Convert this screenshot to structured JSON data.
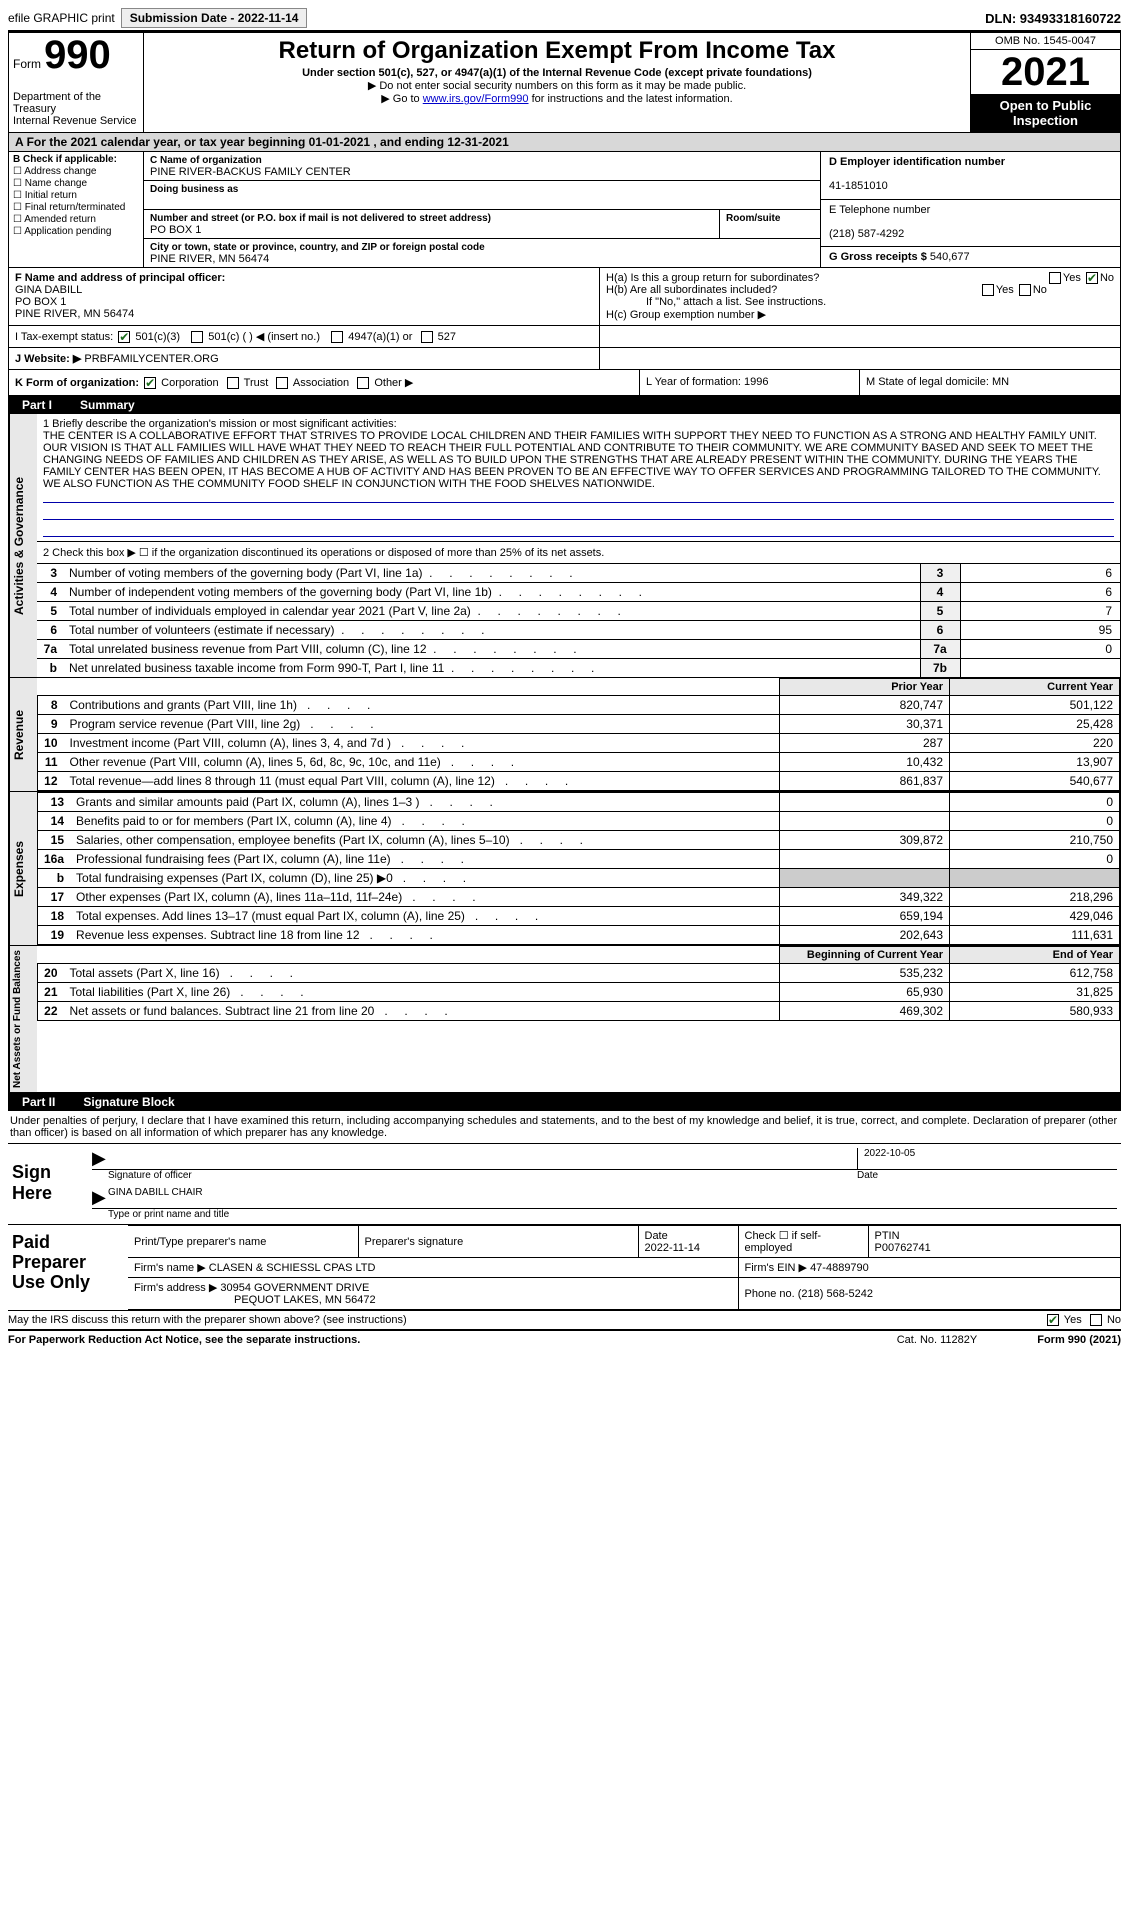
{
  "topbar": {
    "efile": "efile GRAPHIC print",
    "submission_label": "Submission Date - 2022-11-14",
    "dln_label": "DLN: 93493318160722"
  },
  "header": {
    "form_word": "Form",
    "form_num": "990",
    "dept": "Department of the Treasury",
    "irs": "Internal Revenue Service",
    "title": "Return of Organization Exempt From Income Tax",
    "subtitle": "Under section 501(c), 527, or 4947(a)(1) of the Internal Revenue Code (except private foundations)",
    "line1": "▶ Do not enter social security numbers on this form as it may be made public.",
    "line2_pre": "▶ Go to ",
    "line2_link": "www.irs.gov/Form990",
    "line2_post": " for instructions and the latest information.",
    "omb": "OMB No. 1545-0047",
    "year": "2021",
    "open_public": "Open to Public Inspection"
  },
  "period": "For the 2021 calendar year, or tax year beginning 01-01-2021     , and ending 12-31-2021",
  "boxB": {
    "title": "B Check if applicable:",
    "items": [
      "Address change",
      "Name change",
      "Initial return",
      "Final return/terminated",
      "Amended return",
      "Application pending"
    ]
  },
  "boxC": {
    "name_label": "C Name of organization",
    "name": "PINE RIVER-BACKUS FAMILY CENTER",
    "dba_label": "Doing business as",
    "dba": "",
    "street_label": "Number and street (or P.O. box if mail is not delivered to street address)",
    "street": "PO BOX 1",
    "room_label": "Room/suite",
    "city_label": "City or town, state or province, country, and ZIP or foreign postal code",
    "city": "PINE RIVER, MN  56474"
  },
  "boxD": {
    "ein_label": "D Employer identification number",
    "ein": "41-1851010",
    "tel_label": "E Telephone number",
    "tel": "(218) 587-4292",
    "gross_label": "G Gross receipts $",
    "gross": "540,677"
  },
  "boxF": {
    "label": "F  Name and address of principal officer:",
    "name": "GINA DABILL",
    "street": "PO BOX 1",
    "city": "PINE RIVER, MN  56474"
  },
  "boxH": {
    "a_label": "H(a)  Is this a group return for subordinates?",
    "b_label": "H(b)  Are all subordinates included?",
    "b_note": "If \"No,\" attach a list. See instructions.",
    "c_label": "H(c)  Group exemption number ▶",
    "yes": "Yes",
    "no": "No"
  },
  "boxI": {
    "label": "I    Tax-exempt status:",
    "opt1": "501(c)(3)",
    "opt2": "501(c) (   ) ◀ (insert no.)",
    "opt3": "4947(a)(1) or",
    "opt4": "527"
  },
  "boxJ": {
    "label": "J   Website: ▶",
    "value": "PRBFAMILYCENTER.ORG"
  },
  "boxK": {
    "label": "K Form of organization:",
    "corp": "Corporation",
    "trust": "Trust",
    "assoc": "Association",
    "other": "Other ▶"
  },
  "boxL": {
    "label": "L Year of formation: 1996"
  },
  "boxM": {
    "label": "M State of legal domicile: MN"
  },
  "part1": {
    "label": "Part I",
    "title": "Summary",
    "mission_label": "1   Briefly describe the organization's mission or most significant activities:",
    "mission": "THE CENTER IS A COLLABORATIVE EFFORT THAT STRIVES TO PROVIDE LOCAL CHILDREN AND THEIR FAMILIES WITH SUPPORT THEY NEED TO FUNCTION AS A STRONG AND HEALTHY FAMILY UNIT. OUR VISION IS THAT ALL FAMILIES WILL HAVE WHAT THEY NEED TO REACH THEIR FULL POTENTIAL AND CONTRIBUTE TO THEIR COMMUNITY. WE ARE COMMUNITY BASED AND SEEK TO MEET THE CHANGING NEEDS OF FAMILIES AND CHILDREN AS THEY ARISE, AS WELL AS TO BUILD UPON THE STRENGTHS THAT ARE ALREADY PRESENT WITHIN THE COMMUNITY. DURING THE YEARS THE FAMILY CENTER HAS BEEN OPEN, IT HAS BECOME A HUB OF ACTIVITY AND HAS BEEN PROVEN TO BE AN EFFECTIVE WAY TO OFFER SERVICES AND PROGRAMMING TAILORED TO THE COMMUNITY. WE ALSO FUNCTION AS THE COMMUNITY FOOD SHELF IN CONJUNCTION WITH THE FOOD SHELVES NATIONWIDE.",
    "line2": "2   Check this box ▶ ☐  if the organization discontinued its operations or disposed of more than 25% of its net assets.",
    "gov_rows": [
      {
        "n": "3",
        "d": "Number of voting members of the governing body (Part VI, line 1a)",
        "b": "3",
        "v": "6"
      },
      {
        "n": "4",
        "d": "Number of independent voting members of the governing body (Part VI, line 1b)",
        "b": "4",
        "v": "6"
      },
      {
        "n": "5",
        "d": "Total number of individuals employed in calendar year 2021 (Part V, line 2a)",
        "b": "5",
        "v": "7"
      },
      {
        "n": "6",
        "d": "Total number of volunteers (estimate if necessary)",
        "b": "6",
        "v": "95"
      },
      {
        "n": "7a",
        "d": "Total unrelated business revenue from Part VIII, column (C), line 12",
        "b": "7a",
        "v": "0"
      },
      {
        "n": "b",
        "d": "Net unrelated business taxable income from Form 990-T, Part I, line 11",
        "b": "7b",
        "v": ""
      }
    ],
    "py_label": "Prior Year",
    "cy_label": "Current Year",
    "rev_rows": [
      {
        "n": "8",
        "d": "Contributions and grants (Part VIII, line 1h)",
        "py": "820,747",
        "cy": "501,122"
      },
      {
        "n": "9",
        "d": "Program service revenue (Part VIII, line 2g)",
        "py": "30,371",
        "cy": "25,428"
      },
      {
        "n": "10",
        "d": "Investment income (Part VIII, column (A), lines 3, 4, and 7d )",
        "py": "287",
        "cy": "220"
      },
      {
        "n": "11",
        "d": "Other revenue (Part VIII, column (A), lines 5, 6d, 8c, 9c, 10c, and 11e)",
        "py": "10,432",
        "cy": "13,907"
      },
      {
        "n": "12",
        "d": "Total revenue—add lines 8 through 11 (must equal Part VIII, column (A), line 12)",
        "py": "861,837",
        "cy": "540,677"
      }
    ],
    "exp_rows": [
      {
        "n": "13",
        "d": "Grants and similar amounts paid (Part IX, column (A), lines 1–3 )",
        "py": "",
        "cy": "0"
      },
      {
        "n": "14",
        "d": "Benefits paid to or for members (Part IX, column (A), line 4)",
        "py": "",
        "cy": "0"
      },
      {
        "n": "15",
        "d": "Salaries, other compensation, employee benefits (Part IX, column (A), lines 5–10)",
        "py": "309,872",
        "cy": "210,750"
      },
      {
        "n": "16a",
        "d": "Professional fundraising fees (Part IX, column (A), line 11e)",
        "py": "",
        "cy": "0"
      },
      {
        "n": "b",
        "d": "Total fundraising expenses (Part IX, column (D), line 25) ▶0",
        "py": "SHADE",
        "cy": "SHADE"
      },
      {
        "n": "17",
        "d": "Other expenses (Part IX, column (A), lines 11a–11d, 11f–24e)",
        "py": "349,322",
        "cy": "218,296"
      },
      {
        "n": "18",
        "d": "Total expenses. Add lines 13–17 (must equal Part IX, column (A), line 25)",
        "py": "659,194",
        "cy": "429,046"
      },
      {
        "n": "19",
        "d": "Revenue less expenses. Subtract line 18 from line 12",
        "py": "202,643",
        "cy": "111,631"
      }
    ],
    "bcy_label": "Beginning of Current Year",
    "eoy_label": "End of Year",
    "na_rows": [
      {
        "n": "20",
        "d": "Total assets (Part X, line 16)",
        "py": "535,232",
        "cy": "612,758"
      },
      {
        "n": "21",
        "d": "Total liabilities (Part X, line 26)",
        "py": "65,930",
        "cy": "31,825"
      },
      {
        "n": "22",
        "d": "Net assets or fund balances. Subtract line 21 from line 20",
        "py": "469,302",
        "cy": "580,933"
      }
    ]
  },
  "vtabs": {
    "gov": "Activities & Governance",
    "rev": "Revenue",
    "exp": "Expenses",
    "na": "Net Assets or Fund Balances"
  },
  "part2": {
    "label": "Part II",
    "title": "Signature Block",
    "intro": "Under penalties of perjury, I declare that I have examined this return, including accompanying schedules and statements, and to the best of my knowledge and belief, it is true, correct, and complete. Declaration of preparer (other than officer) is based on all information of which preparer has any knowledge.",
    "sign_here": "Sign Here",
    "sig_officer": "Signature of officer",
    "sig_date_label": "Date",
    "sig_date": "2022-10-05",
    "officer_name_title": "GINA DABILL  CHAIR",
    "type_name": "Type or print name and title",
    "paid": "Paid Preparer Use Only",
    "prep_name_label": "Print/Type preparer's name",
    "prep_sig_label": "Preparer's signature",
    "prep_date_label": "Date",
    "prep_date": "2022-11-14",
    "check_if": "Check ☐ if self-employed",
    "ptin_label": "PTIN",
    "ptin": "P00762741",
    "firm_name_label": "Firm's name     ▶",
    "firm_name": "CLASEN & SCHIESSL CPAS LTD",
    "firm_ein_label": "Firm's EIN ▶",
    "firm_ein": "47-4889790",
    "firm_addr_label": "Firm's address ▶",
    "firm_addr1": "30954 GOVERNMENT DRIVE",
    "firm_addr2": "PEQUOT LAKES, MN  56472",
    "phone_label": "Phone no.",
    "phone": "(218) 568-5242",
    "discuss": "May the IRS discuss this return with the preparer shown above? (see instructions)",
    "discuss_yes": "Yes",
    "discuss_no": "No"
  },
  "footer": {
    "left": "For Paperwork Reduction Act Notice, see the separate instructions.",
    "mid": "Cat. No. 11282Y",
    "right": "Form 990 (2021)"
  }
}
